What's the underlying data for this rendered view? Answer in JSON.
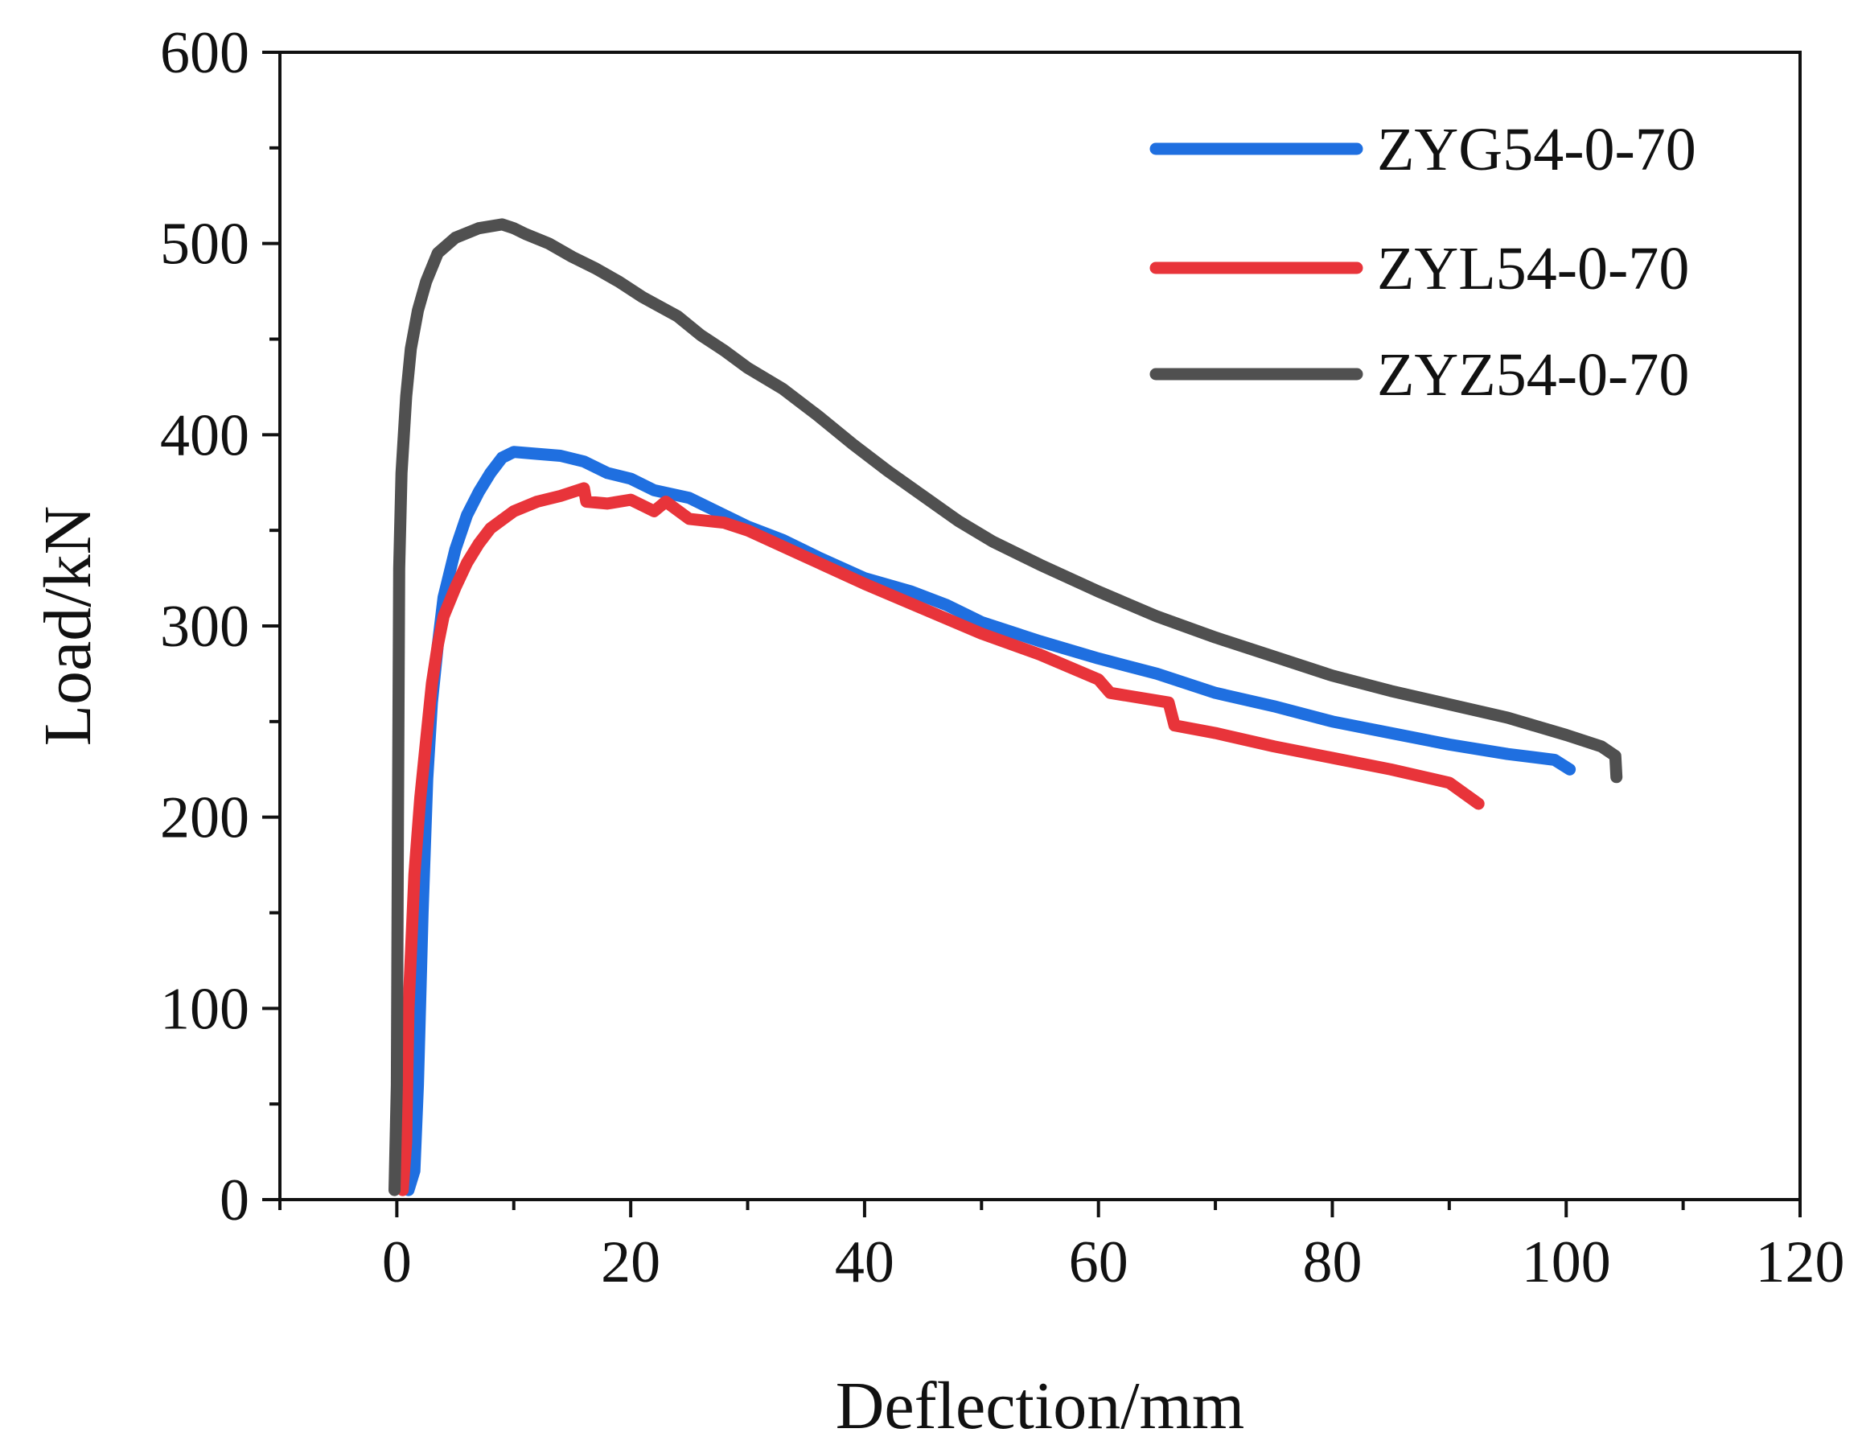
{
  "chart_data": {
    "type": "line",
    "title": "",
    "xlabel": "Deflection/mm",
    "ylabel": "Load/kN",
    "xlim": [
      -10,
      120
    ],
    "ylim": [
      0,
      600
    ],
    "xticks": [
      0,
      20,
      40,
      60,
      80,
      100,
      120
    ],
    "yticks": [
      0,
      100,
      200,
      300,
      400,
      500,
      600
    ],
    "grid": false,
    "legend_position": "top-right",
    "series": [
      {
        "name": "ZYG54-0-70",
        "color": "#1f6fe0",
        "points": [
          [
            1.0,
            5
          ],
          [
            1.5,
            15
          ],
          [
            1.8,
            60
          ],
          [
            2.2,
            150
          ],
          [
            2.6,
            220
          ],
          [
            3.0,
            260
          ],
          [
            3.5,
            290
          ],
          [
            4.0,
            315
          ],
          [
            5.0,
            340
          ],
          [
            6.0,
            358
          ],
          [
            7.0,
            370
          ],
          [
            8.0,
            380
          ],
          [
            9.0,
            388
          ],
          [
            10.0,
            391
          ],
          [
            12.0,
            390
          ],
          [
            14.0,
            389
          ],
          [
            16.0,
            386
          ],
          [
            18.0,
            380
          ],
          [
            20.0,
            377
          ],
          [
            22.0,
            371
          ],
          [
            25.0,
            367
          ],
          [
            28.0,
            358
          ],
          [
            30.0,
            352
          ],
          [
            33.0,
            345
          ],
          [
            36.0,
            336
          ],
          [
            40.0,
            325
          ],
          [
            44.0,
            318
          ],
          [
            47.0,
            311
          ],
          [
            50.0,
            302
          ],
          [
            55.0,
            292
          ],
          [
            60.0,
            283
          ],
          [
            65.0,
            275
          ],
          [
            70.0,
            265
          ],
          [
            75.0,
            258
          ],
          [
            80.0,
            250
          ],
          [
            85.0,
            244
          ],
          [
            90.0,
            238
          ],
          [
            95.0,
            233
          ],
          [
            99.0,
            230
          ],
          [
            100.3,
            225
          ]
        ]
      },
      {
        "name": "ZYL54-0-70",
        "color": "#e8343a",
        "points": [
          [
            0.5,
            5
          ],
          [
            0.8,
            30
          ],
          [
            1.0,
            100
          ],
          [
            1.5,
            170
          ],
          [
            2.0,
            210
          ],
          [
            2.5,
            240
          ],
          [
            3.0,
            270
          ],
          [
            3.5,
            290
          ],
          [
            4.0,
            305
          ],
          [
            5.0,
            320
          ],
          [
            6.0,
            333
          ],
          [
            7.0,
            343
          ],
          [
            8.0,
            351
          ],
          [
            10.0,
            360
          ],
          [
            12.0,
            365
          ],
          [
            14.0,
            368
          ],
          [
            16.0,
            372
          ],
          [
            16.2,
            365
          ],
          [
            18.0,
            364
          ],
          [
            20.0,
            366
          ],
          [
            22.0,
            360
          ],
          [
            23.0,
            365
          ],
          [
            25.0,
            356
          ],
          [
            28.0,
            354
          ],
          [
            30.0,
            350
          ],
          [
            35.0,
            336
          ],
          [
            40.0,
            322
          ],
          [
            45.0,
            309
          ],
          [
            50.0,
            296
          ],
          [
            55.0,
            285
          ],
          [
            60.0,
            272
          ],
          [
            61.0,
            265
          ],
          [
            66.0,
            260
          ],
          [
            66.5,
            248
          ],
          [
            70.0,
            244
          ],
          [
            75.0,
            237
          ],
          [
            80.0,
            231
          ],
          [
            85.0,
            225
          ],
          [
            90.0,
            218
          ],
          [
            92.5,
            207
          ]
        ]
      },
      {
        "name": "ZYZ54-0-70",
        "color": "#505050",
        "points": [
          [
            -0.2,
            5
          ],
          [
            0.0,
            60
          ],
          [
            0.1,
            200
          ],
          [
            0.2,
            330
          ],
          [
            0.4,
            380
          ],
          [
            0.8,
            420
          ],
          [
            1.2,
            445
          ],
          [
            1.8,
            465
          ],
          [
            2.5,
            480
          ],
          [
            3.5,
            495
          ],
          [
            5.0,
            503
          ],
          [
            7.0,
            508
          ],
          [
            9.0,
            510
          ],
          [
            10.0,
            508
          ],
          [
            11.0,
            505
          ],
          [
            13.0,
            500
          ],
          [
            15.0,
            493
          ],
          [
            17.0,
            487
          ],
          [
            19.0,
            480
          ],
          [
            21.0,
            472
          ],
          [
            24.0,
            462
          ],
          [
            26.0,
            452
          ],
          [
            28.0,
            444
          ],
          [
            30.0,
            435
          ],
          [
            33.0,
            424
          ],
          [
            36.0,
            410
          ],
          [
            39.0,
            395
          ],
          [
            42.0,
            381
          ],
          [
            45.0,
            368
          ],
          [
            48.0,
            355
          ],
          [
            51.0,
            344
          ],
          [
            55.0,
            332
          ],
          [
            60.0,
            318
          ],
          [
            65.0,
            305
          ],
          [
            70.0,
            294
          ],
          [
            75.0,
            284
          ],
          [
            80.0,
            274
          ],
          [
            85.0,
            266
          ],
          [
            90.0,
            259
          ],
          [
            95.0,
            252
          ],
          [
            100.0,
            243
          ],
          [
            103.0,
            237
          ],
          [
            104.2,
            232
          ],
          [
            104.3,
            221
          ]
        ]
      }
    ]
  }
}
